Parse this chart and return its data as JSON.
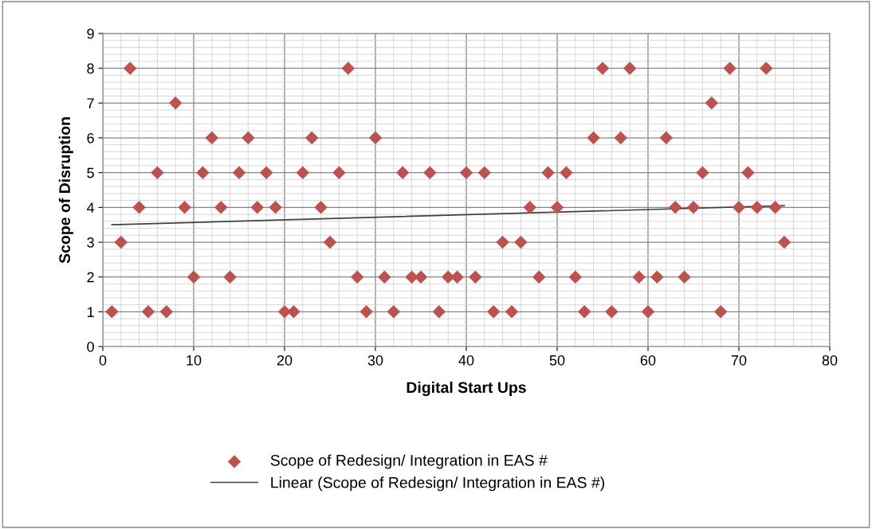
{
  "chart_data": {
    "type": "scatter",
    "xlabel": "Digital Start Ups",
    "ylabel": "Scope of Disruption",
    "xlim": [
      0,
      80
    ],
    "xticks": [
      0,
      10,
      20,
      30,
      40,
      50,
      60,
      70,
      80
    ],
    "ylim": [
      0,
      9
    ],
    "yticks": [
      0,
      1,
      2,
      3,
      4,
      5,
      6,
      7,
      8,
      9
    ],
    "grid": true,
    "legend": "bottom",
    "marker": "diamond",
    "series": [
      {
        "name": "Scope of Redesign/ Integration in EAS #",
        "color": "#c0504d",
        "x": [
          1,
          2,
          3,
          4,
          5,
          6,
          7,
          8,
          9,
          10,
          11,
          12,
          13,
          14,
          15,
          16,
          17,
          18,
          19,
          20,
          21,
          22,
          23,
          24,
          25,
          26,
          27,
          28,
          29,
          30,
          31,
          32,
          33,
          34,
          35,
          36,
          37,
          38,
          39,
          40,
          41,
          42,
          43,
          44,
          45,
          46,
          47,
          48,
          49,
          50,
          51,
          52,
          53,
          54,
          55,
          56,
          57,
          58,
          59,
          60,
          61,
          62,
          63,
          64,
          65,
          66,
          67,
          68,
          69,
          70,
          71,
          72,
          73,
          74,
          75
        ],
        "values": [
          1,
          3,
          8,
          4,
          1,
          5,
          1,
          7,
          4,
          2,
          5,
          6,
          4,
          2,
          5,
          6,
          4,
          5,
          4,
          1,
          1,
          5,
          6,
          4,
          3,
          5,
          8,
          2,
          1,
          6,
          2,
          1,
          5,
          2,
          2,
          5,
          1,
          2,
          2,
          5,
          2,
          5,
          1,
          3,
          1,
          3,
          4,
          2,
          5,
          4,
          5,
          2,
          1,
          6,
          8,
          1,
          6,
          8,
          2,
          1,
          2,
          6,
          4,
          2,
          4,
          5,
          7,
          1,
          8,
          4,
          5,
          4,
          8,
          4,
          3
        ]
      },
      {
        "name": "Linear (Scope of Redesign/ Integration in EAS #)",
        "color": "#404040",
        "type": "line",
        "marker": "none",
        "line_style": "solid",
        "x": [
          1,
          75
        ],
        "values": [
          3.5,
          4.05
        ]
      }
    ]
  }
}
